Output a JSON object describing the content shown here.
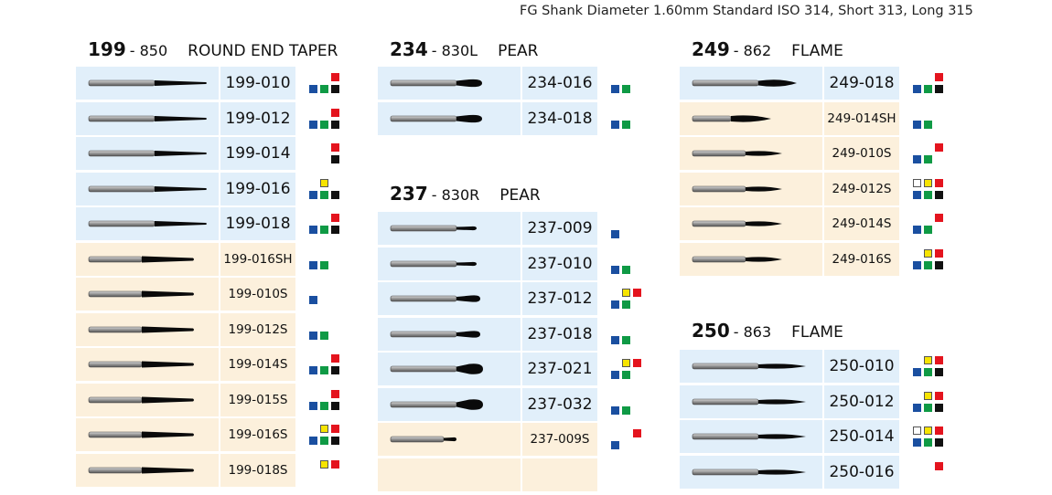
{
  "header": "FG Shank Diameter 1.60mm Standard ISO 314, Short 313, Long 315",
  "colors": {
    "blue": "#1a4fa0",
    "green": "#0f9a45",
    "black": "#111111",
    "red": "#e4141e",
    "yellow": "#f7e400",
    "white": "#ffffff"
  },
  "groups": [
    {
      "num": "199",
      "code": "- 850",
      "shape": "ROUND END TAPER",
      "rows": [
        {
          "code": "199-010",
          "bg": "blue",
          "bur": "taper",
          "bottom": [
            "blue",
            "green",
            "black"
          ],
          "top": [
            "",
            "",
            "red"
          ]
        },
        {
          "code": "199-012",
          "bg": "blue",
          "bur": "taper",
          "bottom": [
            "blue",
            "green",
            "black"
          ],
          "top": [
            "",
            "",
            "red"
          ]
        },
        {
          "code": "199-014",
          "bg": "blue",
          "bur": "taper",
          "bottom": [
            "",
            "",
            "black"
          ],
          "top": [
            "",
            "",
            "red"
          ]
        },
        {
          "code": "199-016",
          "bg": "blue",
          "bur": "taper",
          "bottom": [
            "blue",
            "green",
            "black"
          ],
          "top": [
            "",
            "yellow",
            ""
          ]
        },
        {
          "code": "199-018",
          "bg": "blue",
          "bur": "taper",
          "bottom": [
            "blue",
            "green",
            "black"
          ],
          "top": [
            "",
            "",
            "red"
          ]
        },
        {
          "code": "199-016SH",
          "bg": "tan",
          "bur": "taper-short",
          "bottom": [
            "blue",
            "green",
            ""
          ],
          "top": [
            "",
            "",
            ""
          ]
        },
        {
          "code": "199-010S",
          "bg": "tan",
          "bur": "taper-short",
          "bottom": [
            "blue",
            "",
            ""
          ],
          "top": [
            "",
            "",
            ""
          ]
        },
        {
          "code": "199-012S",
          "bg": "tan",
          "bur": "taper-short",
          "bottom": [
            "blue",
            "green",
            ""
          ],
          "top": [
            "",
            "",
            ""
          ]
        },
        {
          "code": "199-014S",
          "bg": "tan",
          "bur": "taper-short",
          "bottom": [
            "blue",
            "green",
            "black"
          ],
          "top": [
            "",
            "",
            "red"
          ]
        },
        {
          "code": "199-015S",
          "bg": "tan",
          "bur": "taper-short",
          "bottom": [
            "blue",
            "green",
            "black"
          ],
          "top": [
            "",
            "",
            "red"
          ]
        },
        {
          "code": "199-016S",
          "bg": "tan",
          "bur": "taper-short",
          "bottom": [
            "blue",
            "green",
            "black"
          ],
          "top": [
            "",
            "yellow",
            "red"
          ]
        },
        {
          "code": "199-018S",
          "bg": "tan",
          "bur": "taper-short",
          "bottom": [
            "",
            "",
            ""
          ],
          "top": [
            "",
            "yellow",
            "red"
          ]
        }
      ]
    },
    {
      "num": "234",
      "code": "- 830L",
      "shape": "PEAR",
      "rows": [
        {
          "code": "234-016",
          "bg": "blue",
          "bur": "pear-long",
          "bottom": [
            "blue",
            "green",
            ""
          ],
          "top": [
            "",
            "",
            ""
          ]
        },
        {
          "code": "234-018",
          "bg": "blue",
          "bur": "pear-long",
          "bottom": [
            "blue",
            "green",
            ""
          ],
          "top": [
            "",
            "",
            ""
          ]
        }
      ]
    },
    {
      "num": "237",
      "code": "- 830R",
      "shape": "PEAR",
      "rows": [
        {
          "code": "237-009",
          "bg": "blue",
          "bur": "pear-small",
          "bottom": [
            "blue",
            "",
            ""
          ],
          "top": [
            "",
            "",
            ""
          ]
        },
        {
          "code": "237-010",
          "bg": "blue",
          "bur": "pear-small",
          "bottom": [
            "blue",
            "green",
            ""
          ],
          "top": [
            "",
            "",
            ""
          ]
        },
        {
          "code": "237-012",
          "bg": "blue",
          "bur": "pear-med",
          "bottom": [
            "blue",
            "green",
            ""
          ],
          "top": [
            "",
            "yellow",
            "red"
          ]
        },
        {
          "code": "237-018",
          "bg": "blue",
          "bur": "pear-med",
          "bottom": [
            "blue",
            "green",
            ""
          ],
          "top": [
            "",
            "",
            ""
          ]
        },
        {
          "code": "237-021",
          "bg": "blue",
          "bur": "pear-big",
          "bottom": [
            "blue",
            "green",
            ""
          ],
          "top": [
            "",
            "yellow",
            "red"
          ]
        },
        {
          "code": "237-032",
          "bg": "blue",
          "bur": "pear-big",
          "bottom": [
            "blue",
            "green",
            ""
          ],
          "top": [
            "",
            "",
            ""
          ]
        },
        {
          "code": "237-009S",
          "bg": "tan",
          "bur": "pear-short",
          "bottom": [
            "blue",
            "",
            ""
          ],
          "top": [
            "",
            "",
            "red"
          ]
        },
        {
          "code": "",
          "bg": "tan",
          "bur": "none",
          "bottom": [
            "",
            "",
            ""
          ],
          "top": [
            "",
            "",
            ""
          ]
        }
      ]
    },
    {
      "num": "249",
      "code": "- 862",
      "shape": "FLAME",
      "rows": [
        {
          "code": "249-018",
          "bg": "blue",
          "bur": "flame",
          "bottom": [
            "blue",
            "green",
            "black"
          ],
          "top": [
            "",
            "",
            "red"
          ]
        },
        {
          "code": "249-014SH",
          "bg": "tan",
          "bur": "flame-short",
          "bottom": [
            "blue",
            "green",
            ""
          ],
          "top": [
            "",
            "",
            ""
          ]
        },
        {
          "code": "249-010S",
          "bg": "tan",
          "bur": "flame-thin",
          "bottom": [
            "blue",
            "green",
            ""
          ],
          "top": [
            "",
            "",
            "red"
          ]
        },
        {
          "code": "249-012S",
          "bg": "tan",
          "bur": "flame-thin",
          "bottom": [
            "blue",
            "green",
            "black"
          ],
          "top": [
            "white",
            "yellow",
            "red"
          ]
        },
        {
          "code": "249-014S",
          "bg": "tan",
          "bur": "flame-thin",
          "bottom": [
            "blue",
            "green",
            ""
          ],
          "top": [
            "",
            "",
            "red"
          ]
        },
        {
          "code": "249-016S",
          "bg": "tan",
          "bur": "flame-thin",
          "bottom": [
            "blue",
            "green",
            "black"
          ],
          "top": [
            "",
            "yellow",
            "red"
          ]
        }
      ]
    },
    {
      "num": "250",
      "code": "- 863",
      "shape": "FLAME",
      "rows": [
        {
          "code": "250-010",
          "bg": "blue",
          "bur": "flame-long",
          "bottom": [
            "blue",
            "green",
            "black"
          ],
          "top": [
            "",
            "yellow",
            "red"
          ]
        },
        {
          "code": "250-012",
          "bg": "blue",
          "bur": "flame-long",
          "bottom": [
            "blue",
            "green",
            "black"
          ],
          "top": [
            "",
            "yellow",
            "red"
          ]
        },
        {
          "code": "250-014",
          "bg": "blue",
          "bur": "flame-long",
          "bottom": [
            "blue",
            "green",
            "black"
          ],
          "top": [
            "white",
            "yellow",
            "red"
          ]
        },
        {
          "code": "250-016",
          "bg": "blue",
          "bur": "flame-long",
          "bottom": [
            "",
            "",
            ""
          ],
          "top": [
            "",
            "",
            "red"
          ]
        }
      ]
    }
  ]
}
